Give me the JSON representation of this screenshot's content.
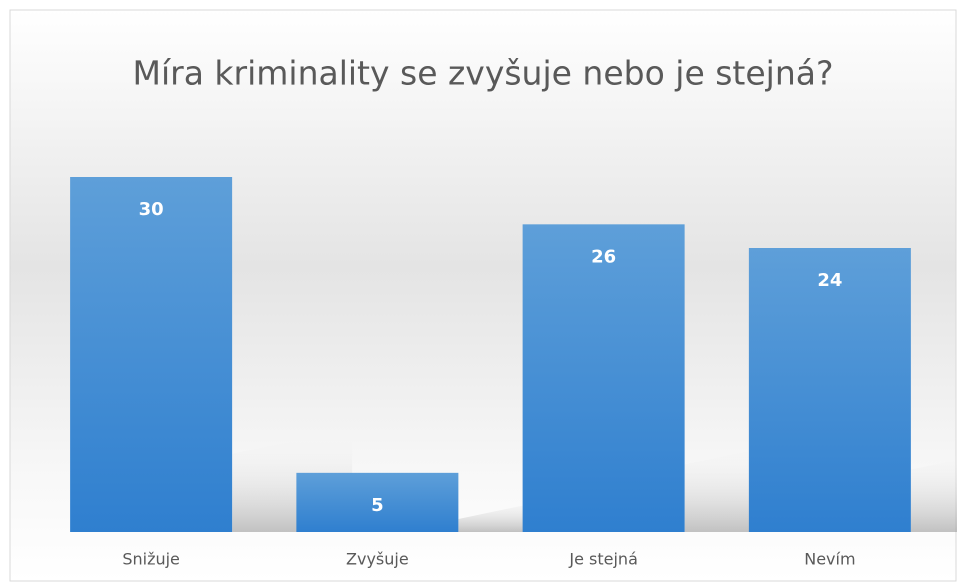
{
  "chart_data": {
    "type": "bar",
    "title": "Míra kriminality se zvyšuje nebo je stejná?",
    "categories": [
      "Snižuje",
      "Zvyšuje",
      "Je stejná",
      "Nevím"
    ],
    "values": [
      30,
      5,
      26,
      24
    ],
    "color": "#4a8fd6"
  }
}
